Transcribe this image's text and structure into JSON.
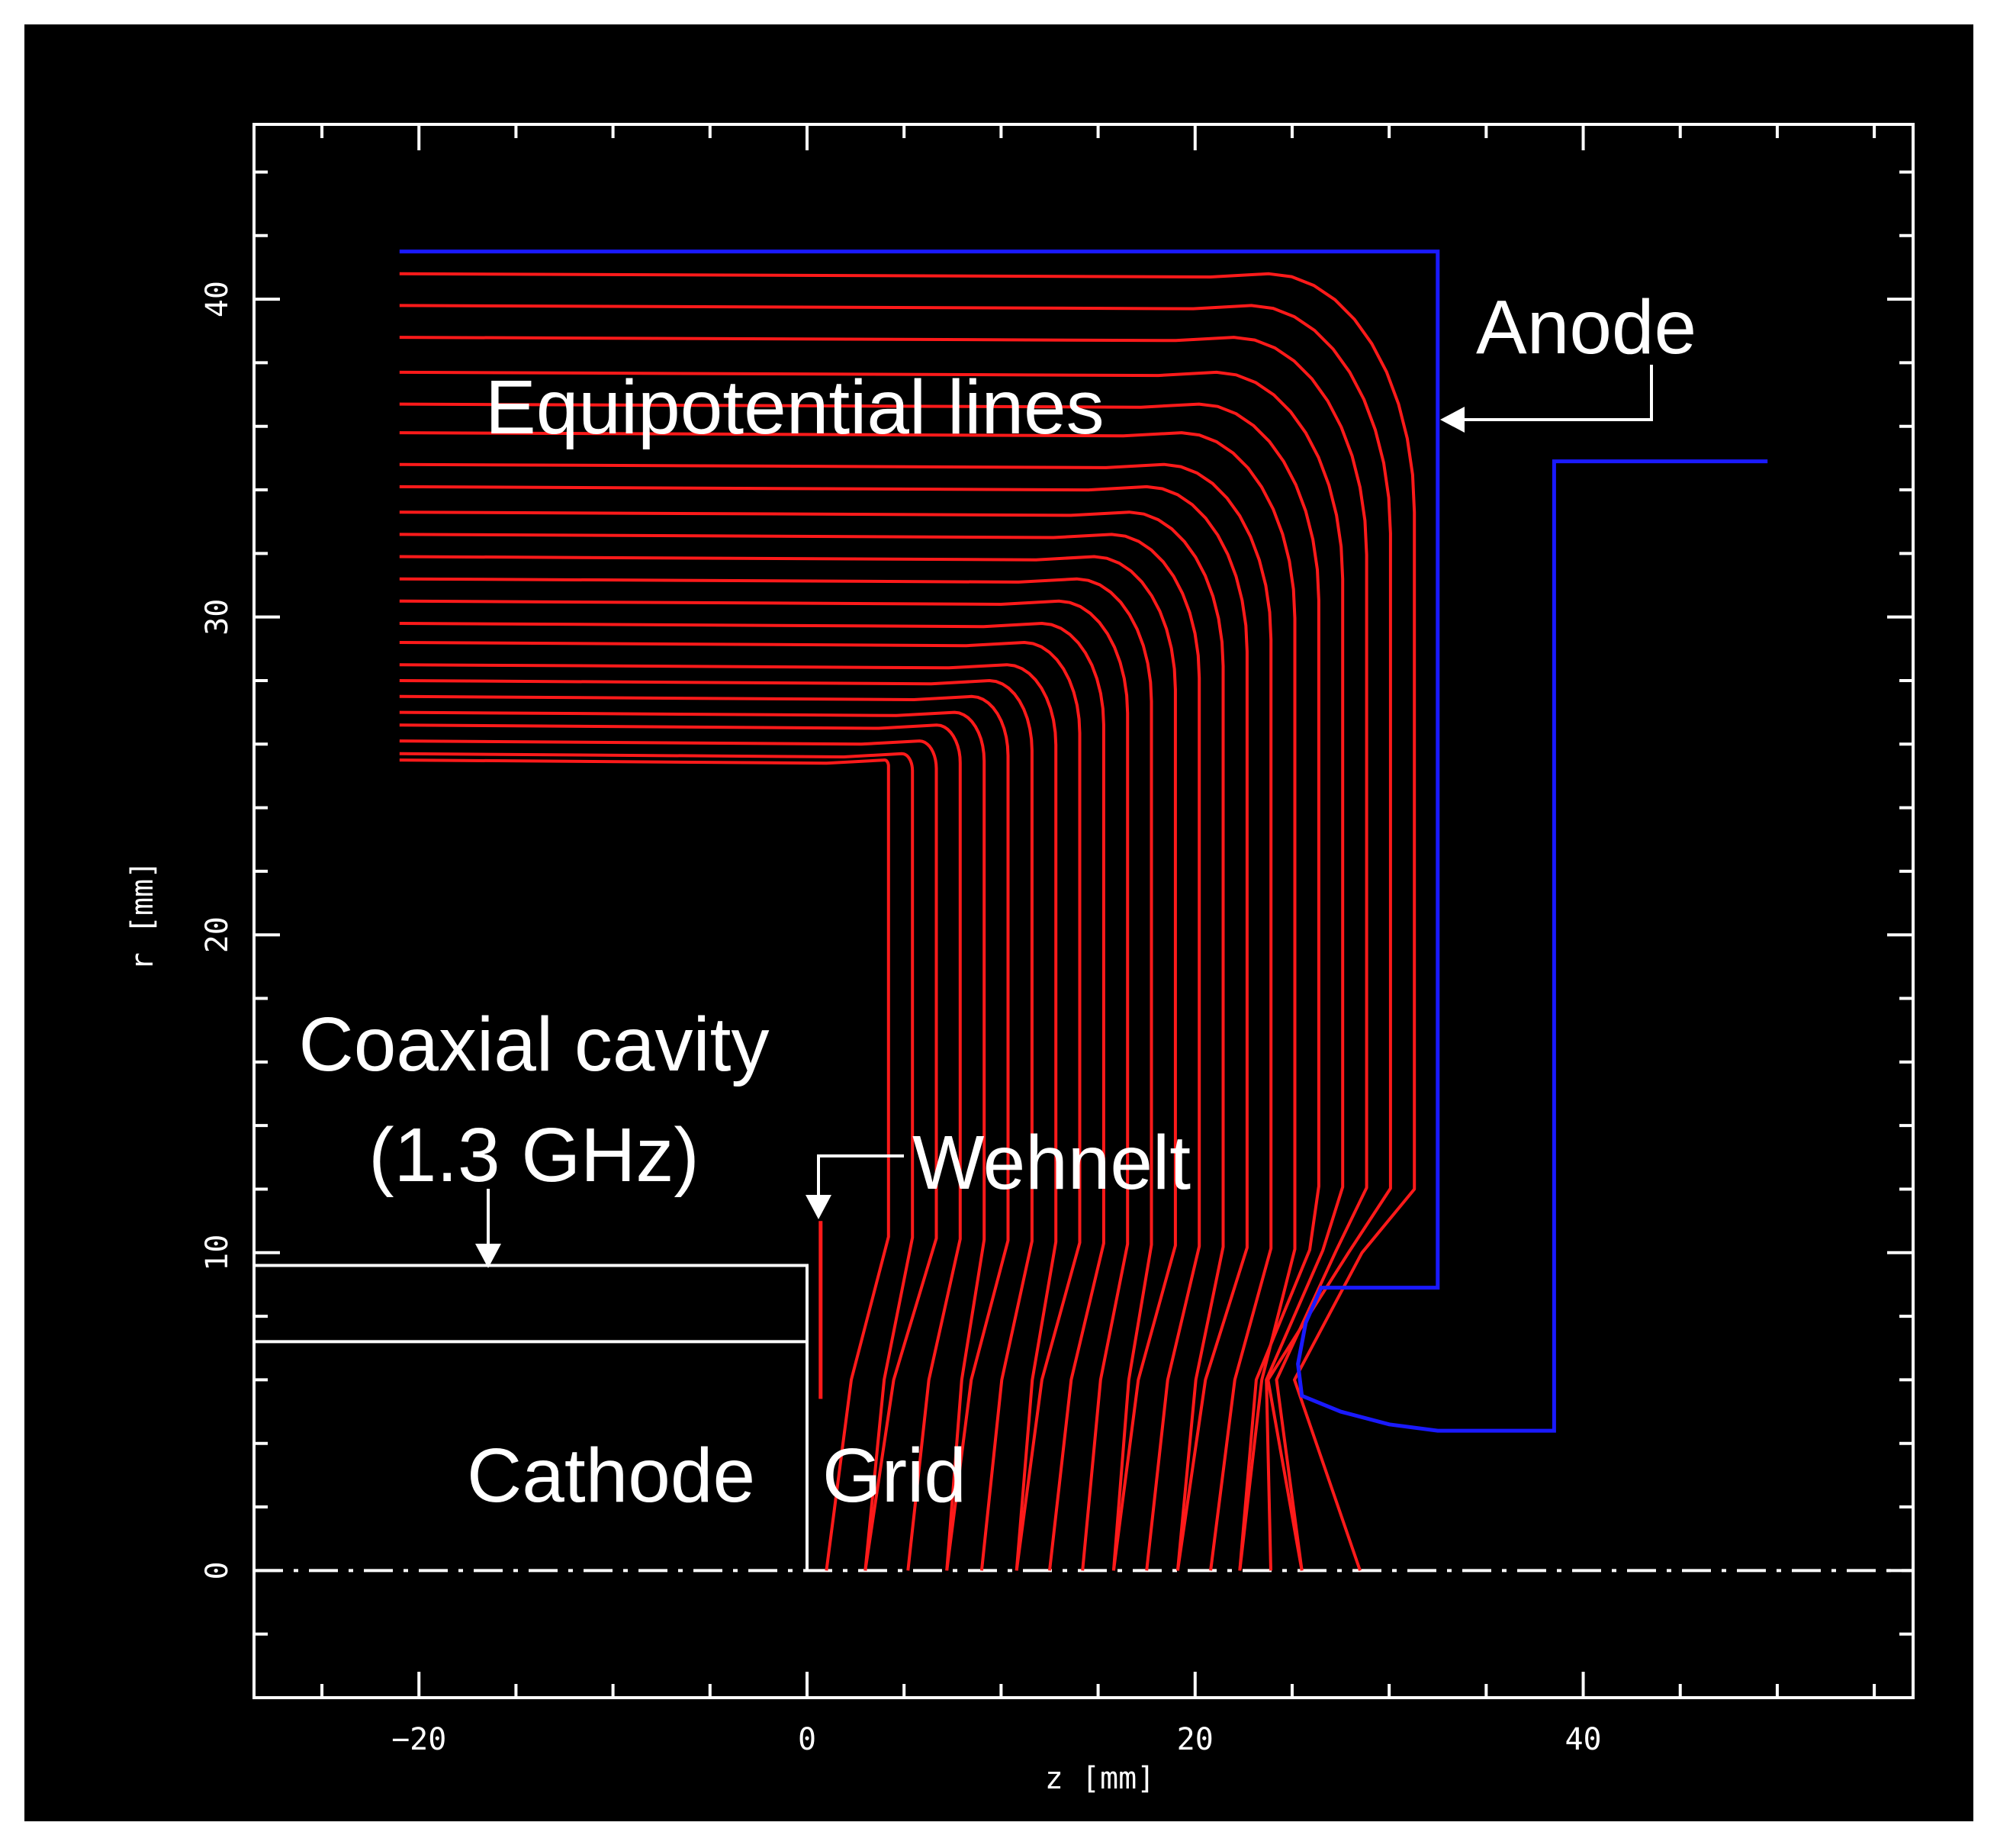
{
  "chart_data": {
    "type": "line",
    "xlabel": "z [mm]",
    "ylabel": "r [mm]",
    "xlim": [
      -28.5,
      57
    ],
    "ylim": [
      -4,
      45.5
    ],
    "x_ticks": [
      -20,
      0,
      20,
      40
    ],
    "y_ticks": [
      0,
      10,
      20,
      30,
      40
    ],
    "colors": {
      "background": "#000000",
      "frame": "#ffffff",
      "equipotential": "#ff1a1a",
      "anode": "#1a1aff",
      "electrodes": "#ffffff"
    },
    "annotations": {
      "anode": "Anode",
      "equipotential": "Equipotential lines",
      "coaxial_line1": "Coaxial cavity",
      "coaxial_line2": "(1.3 GHz)",
      "wehnelt": "Wehnelt",
      "cathode": "Cathode",
      "grid": "Grid"
    },
    "equipotential": {
      "z_start": -21,
      "top_r": [
        25.5,
        25.7,
        26.1,
        26.6,
        27.0,
        27.5,
        28.0,
        28.5,
        29.2,
        29.8,
        30.5,
        31.2,
        31.9,
        32.6,
        33.3,
        34.1,
        34.8,
        35.8,
        36.7,
        37.7,
        38.8,
        39.8,
        40.8
      ],
      "axis_z": [
        1.0,
        3.0,
        5.2,
        7.2,
        9.0,
        10.8,
        12.5,
        14.2,
        15.8,
        17.5,
        19.1,
        20.8,
        22.3,
        23.9,
        25.5,
        28.5
      ]
    },
    "anode_inner": [
      [
        -21,
        41.5
      ],
      [
        32.5,
        41.5
      ],
      [
        32.5,
        8.9
      ],
      [
        26.5,
        8.9
      ],
      [
        25.7,
        7.8
      ],
      [
        25.3,
        6.5
      ],
      [
        25.5,
        5.5
      ],
      [
        27.5,
        5.0
      ],
      [
        30.0,
        4.6
      ],
      [
        32.5,
        4.4
      ],
      [
        38.5,
        4.4
      ],
      [
        38.5,
        34.9
      ],
      [
        49.5,
        34.9
      ]
    ],
    "cavity_outer": [
      [
        -28.5,
        9.6
      ],
      [
        0,
        9.6
      ],
      [
        0,
        0
      ]
    ],
    "cavity_inner": [
      [
        -28.5,
        7.2
      ],
      [
        0,
        7.2
      ]
    ],
    "wehnelt": [
      [
        0.7,
        11.0
      ],
      [
        0.7,
        5.4
      ]
    ]
  }
}
